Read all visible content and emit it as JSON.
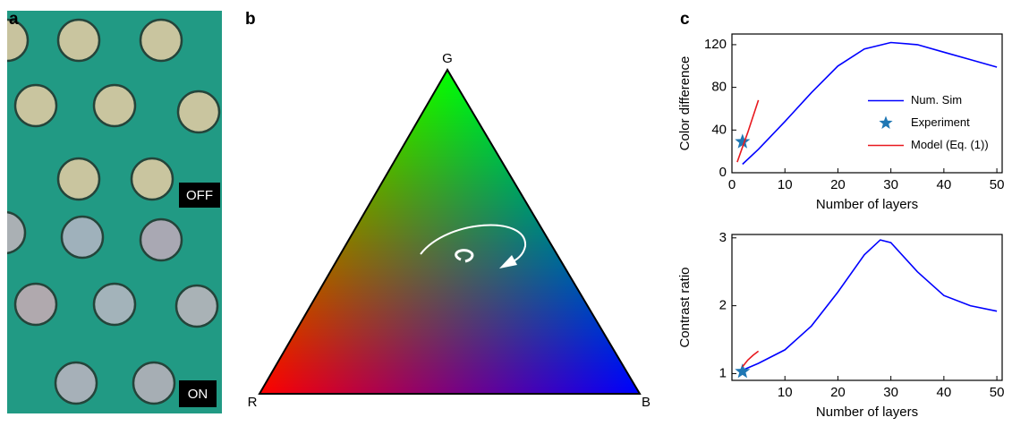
{
  "panel_labels": [
    "a",
    "b",
    "c"
  ],
  "image_labels": [
    "OFF",
    "ON"
  ],
  "triangle": {
    "vertices": [
      "G",
      "R",
      "B"
    ]
  },
  "chart_data": [
    {
      "type": "line",
      "xlabel": "Number of layers",
      "ylabel": "Color difference",
      "xlim": [
        0,
        51
      ],
      "ylim": [
        0,
        130
      ],
      "xticks": [
        0,
        10,
        20,
        30,
        40,
        50
      ],
      "yticks": [
        0,
        40,
        80,
        120
      ],
      "legend": "center right",
      "series": [
        {
          "name": "Num. Sim",
          "color": "#0000ff",
          "x": [
            2,
            5,
            10,
            15,
            20,
            25,
            30,
            35,
            40,
            45,
            50
          ],
          "values": [
            8,
            22,
            48,
            75,
            100,
            116,
            122,
            120,
            113,
            106,
            99
          ]
        },
        {
          "name": "Experiment",
          "color": "#1f77b4",
          "marker": "star",
          "x": [
            2
          ],
          "values": [
            29
          ]
        },
        {
          "name": "Model (Eq. (1))",
          "color": "#e8191f",
          "x": [
            1,
            2,
            3,
            4,
            5
          ],
          "values": [
            10,
            24,
            38,
            53,
            68
          ]
        }
      ]
    },
    {
      "type": "line",
      "xlabel": "Number of layers",
      "ylabel": "Contrast ratio",
      "xlim": [
        0,
        51
      ],
      "ylim": [
        0.9,
        3.05
      ],
      "xticks": [
        10,
        20,
        30,
        40,
        50
      ],
      "yticks": [
        1,
        2,
        3
      ],
      "series": [
        {
          "color": "#0000ff",
          "x": [
            2,
            5,
            10,
            15,
            20,
            25,
            28,
            30,
            35,
            40,
            45,
            50
          ],
          "values": [
            1.05,
            1.15,
            1.35,
            1.7,
            2.2,
            2.75,
            2.97,
            2.93,
            2.5,
            2.15,
            2.0,
            1.92
          ]
        },
        {
          "color": "#1f77b4",
          "marker": "star",
          "x": [
            2
          ],
          "values": [
            1.03
          ]
        },
        {
          "color": "#e8191f",
          "x": [
            2,
            3,
            4,
            5
          ],
          "values": [
            1.1,
            1.2,
            1.27,
            1.33
          ]
        }
      ]
    }
  ]
}
